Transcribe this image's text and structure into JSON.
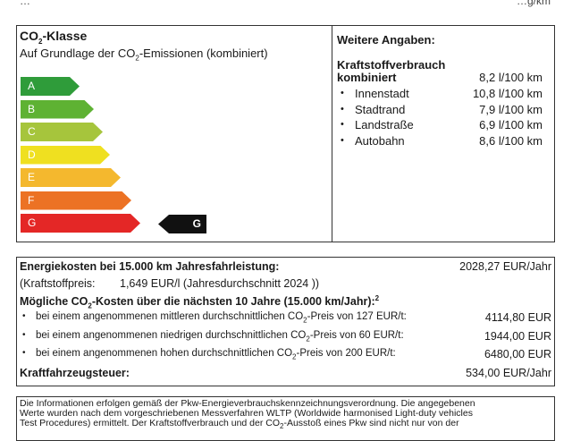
{
  "top_strip": {
    "left": "…",
    "right": "…g/km"
  },
  "co2": {
    "title_pre": "CO",
    "title_sub": "2",
    "title_post": "-Klasse",
    "subtitle_pre": "Auf Grundlage der CO",
    "subtitle_sub": "2",
    "subtitle_post": "-Emissionen (kombiniert)",
    "classes": [
      {
        "label": "A",
        "color": "#2f9c3a"
      },
      {
        "label": "B",
        "color": "#5eb233"
      },
      {
        "label": "C",
        "color": "#a6c53c"
      },
      {
        "label": "D",
        "color": "#efe020"
      },
      {
        "label": "E",
        "color": "#f4b82e"
      },
      {
        "label": "F",
        "color": "#ec7224"
      },
      {
        "label": "G",
        "color": "#e42726"
      }
    ],
    "selected_class": "G"
  },
  "weitere": {
    "title": "Weitere Angaben:",
    "fuel_label_1": "Kraftstoffverbrauch",
    "fuel_label_2": "kombiniert",
    "fuel_value": "8,2 l/100 km",
    "rows": [
      {
        "label": "Innenstadt",
        "value": "10,8 l/100 km"
      },
      {
        "label": "Stadtrand",
        "value": "7,9 l/100 km"
      },
      {
        "label": "Landstraße",
        "value": "6,9 l/100 km"
      },
      {
        "label": "Autobahn",
        "value": "8,6 l/100 km"
      }
    ]
  },
  "costs": {
    "energy_label": "Energiekosten bei 15.000 km Jahresfahrleistung:",
    "energy_value": "2028,27 EUR/Jahr",
    "fuelprice_label": "(Kraftstoffpreis:",
    "fuelprice_value": "1,649 EUR/l (Jahresdurchschnitt 2024 ))",
    "co2cost_pre": "Mögliche CO",
    "co2cost_sub": "2",
    "co2cost_post": "-Kosten über die nächsten 10 Jahre (15.000 km/Jahr):",
    "co2cost_sup": "2",
    "rows": [
      {
        "pre": "bei einem angenommenen mittleren durchschnittlichen CO",
        "sub": "2",
        "post": "-Preis von 127 EUR/t:",
        "value": "4114,80 EUR"
      },
      {
        "pre": "bei einem angenommenen niedrigen durchschnittlichen CO",
        "sub": "2",
        "post": "-Preis von 60 EUR/t:",
        "value": "1944,00 EUR"
      },
      {
        "pre": "bei einem angenommenen hohen durchschnittlichen CO",
        "sub": "2",
        "post": "-Preis von 200 EUR/t:",
        "value": "6480,00 EUR"
      }
    ],
    "tax_label": "Kraftfahrzeugsteuer:",
    "tax_value": "534,00 EUR/Jahr"
  },
  "info": {
    "line1": "Die Informationen erfolgen gemäß der Pkw-Energieverbrauchskennzeichnungsverordnung. Die angegebenen",
    "line2": "Werte wurden nach dem vorgeschriebenen Messverfahren WLTP (Worldwide harmonised Light-duty vehicles",
    "line3_pre": "Test Procedures) ermittelt. Der Kraftstoffverbrauch und der CO",
    "line3_sub": "2",
    "line3_post": "-Ausstoß eines Pkw sind nicht nur von der"
  }
}
